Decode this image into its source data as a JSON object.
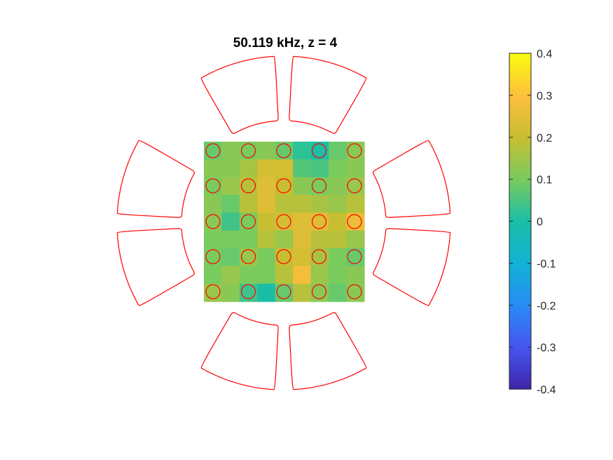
{
  "chart_data": {
    "type": "heatmap",
    "title": "50.119 kHz, z = 4",
    "grid": {
      "rows": 9,
      "cols": 9
    },
    "values": [
      [
        0.08,
        0.12,
        0.1,
        0.12,
        0.08,
        0.02,
        0.0,
        0.08,
        0.12
      ],
      [
        0.12,
        0.12,
        0.16,
        0.22,
        0.22,
        0.06,
        0.05,
        0.1,
        0.12
      ],
      [
        0.1,
        0.14,
        0.18,
        0.24,
        0.2,
        0.12,
        0.1,
        0.12,
        0.14
      ],
      [
        0.12,
        0.08,
        0.18,
        0.24,
        0.18,
        0.18,
        0.16,
        0.14,
        0.18
      ],
      [
        0.12,
        0.04,
        0.1,
        0.2,
        0.22,
        0.24,
        0.24,
        0.2,
        0.26
      ],
      [
        0.1,
        0.1,
        0.1,
        0.18,
        0.14,
        0.24,
        0.18,
        0.18,
        0.14
      ],
      [
        0.1,
        0.08,
        0.14,
        0.1,
        0.2,
        0.22,
        0.16,
        0.1,
        0.08
      ],
      [
        0.1,
        0.14,
        0.1,
        0.1,
        0.18,
        0.28,
        0.14,
        0.1,
        0.12
      ],
      [
        0.14,
        0.12,
        0.04,
        0.0,
        0.08,
        0.18,
        0.12,
        0.08,
        0.12
      ]
    ],
    "markers": {
      "rows": 5,
      "cols": 5,
      "shape": "circle",
      "color": "#ff0000"
    },
    "colorbar": {
      "colormap": "parula",
      "min": -0.4,
      "max": 0.4,
      "ticks": [
        0.4,
        0.3,
        0.2,
        0.1,
        0,
        -0.1,
        -0.2,
        -0.3,
        -0.4
      ],
      "tick_labels": [
        "0.4",
        "0.3",
        "0.2",
        "0.1",
        "0",
        "-0.1",
        "-0.2",
        "-0.3",
        "-0.4"
      ]
    },
    "outline_color": "#ff0000",
    "outline_segments": 8
  }
}
